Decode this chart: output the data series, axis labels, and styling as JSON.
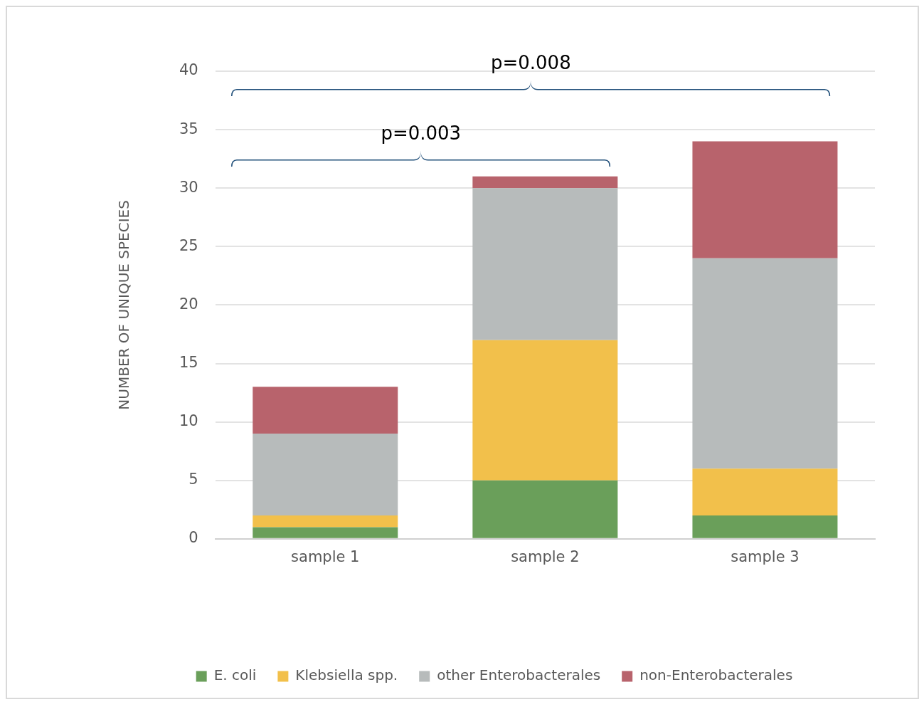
{
  "chart_data": {
    "type": "bar",
    "stacked": true,
    "ylabel": "NUMBER OF UNIQUE SPECIES",
    "categories": [
      "sample 1",
      "sample 2",
      "sample 3"
    ],
    "series": [
      {
        "name": "E. coli",
        "color": "#6a9f5a",
        "values": [
          1,
          5,
          2
        ]
      },
      {
        "name": "Klebsiella spp.",
        "color": "#f2c04b",
        "values": [
          1,
          12,
          4
        ]
      },
      {
        "name": "other Enterobacterales",
        "color": "#b7bbbb",
        "values": [
          7,
          13,
          18
        ]
      },
      {
        "name": "non-Enterobacterales",
        "color": "#b8636c",
        "values": [
          4,
          1,
          10
        ]
      }
    ],
    "ylim": [
      0,
      40
    ],
    "yticks": [
      0,
      5,
      10,
      15,
      20,
      25,
      30,
      35,
      40
    ],
    "grid": "y",
    "legend": "bottom",
    "annotations": [
      "p=0.008",
      "p=0.003"
    ]
  }
}
